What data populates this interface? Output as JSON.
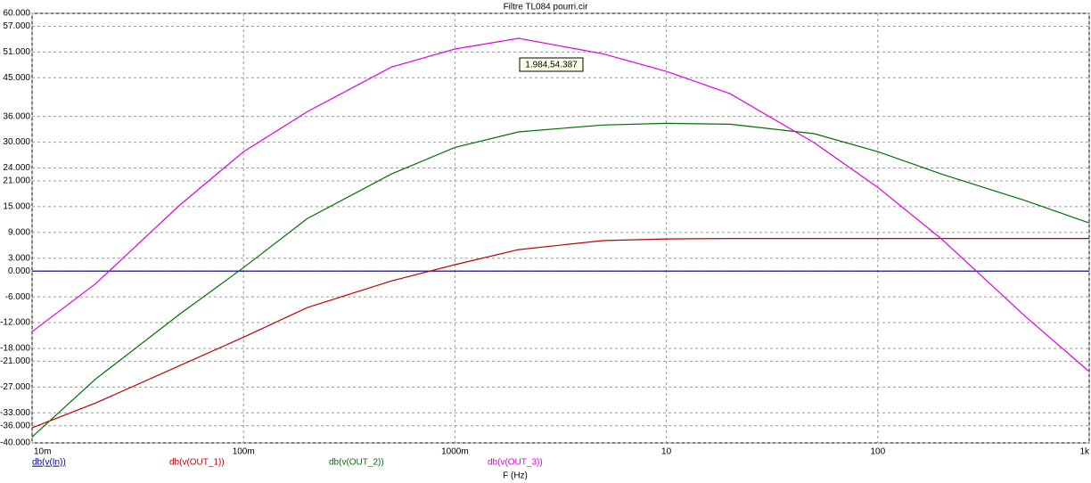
{
  "chart_data": {
    "type": "line",
    "title": "Filtre TL084 pourri.cir",
    "x_label": "F (Hz)",
    "log_x": true,
    "grid": true,
    "xlim": [
      0.01,
      1000
    ],
    "xticks": [
      {
        "value": 0.01,
        "label": "10m"
      },
      {
        "value": 0.1,
        "label": "100m"
      },
      {
        "value": 1,
        "label": "1000m"
      },
      10,
      100,
      {
        "value": 1000,
        "label": "1k"
      }
    ],
    "ylim": [
      -40,
      60
    ],
    "yticks": [
      {
        "value": 60,
        "label": "60.000"
      },
      {
        "value": 57,
        "label": "57.000"
      },
      {
        "value": 51,
        "label": "51.000"
      },
      {
        "value": 45,
        "label": "45.000"
      },
      {
        "value": 36,
        "label": "36.000"
      },
      {
        "value": 30,
        "label": "30.000"
      },
      {
        "value": 24,
        "label": "24.000"
      },
      {
        "value": 21,
        "label": "21.000"
      },
      {
        "value": 15,
        "label": "15.000"
      },
      {
        "value": 9,
        "label": "9.000"
      },
      {
        "value": 3,
        "label": "3.000"
      },
      {
        "value": 0,
        "label": "0.000"
      },
      {
        "value": -6,
        "label": "-6.000"
      },
      {
        "value": -12,
        "label": "-12.000"
      },
      {
        "value": -18,
        "label": "-18.000"
      },
      {
        "value": -21,
        "label": "-21.000"
      },
      {
        "value": -27,
        "label": "-27.000"
      },
      {
        "value": -33,
        "label": "-33.000"
      },
      {
        "value": -36,
        "label": "-36.000"
      },
      {
        "value": -40,
        "label": "-40.000"
      }
    ],
    "x": [
      0.01,
      0.02,
      0.05,
      0.1,
      0.2,
      0.5,
      1,
      2,
      5,
      10,
      20,
      50,
      100,
      200,
      500,
      1000
    ],
    "series": [
      {
        "name": "db(v(In))",
        "color": "#000080",
        "values": [
          0,
          0,
          0,
          0,
          0,
          0,
          0,
          0,
          0,
          0,
          0,
          0,
          0,
          0,
          0,
          0
        ]
      },
      {
        "name": "db(v(OUT_1))",
        "color": "#c00000",
        "values": [
          -36.5,
          -30.7,
          -22,
          -15.4,
          -8.5,
          -2.3,
          1.5,
          5,
          7.1,
          7.5,
          7.6,
          7.6,
          7.6,
          7.6,
          7.6,
          7.6
        ]
      },
      {
        "name": "db(v(OUT_2))",
        "color": "#007000",
        "values": [
          -38.6,
          -25.1,
          -10,
          0.8,
          12.2,
          22.6,
          28.8,
          32.4,
          34,
          34.4,
          34.2,
          32,
          27.8,
          22.6,
          16.4,
          11.2
        ]
      },
      {
        "name": "db(v(OUT_3))",
        "color": "#e000e0",
        "values": [
          -14.1,
          -2.9,
          15.4,
          27.8,
          37.1,
          47.5,
          51.7,
          54.2,
          50.6,
          46.5,
          41.3,
          29.9,
          19.5,
          7.5,
          -10.6,
          -23.4
        ]
      }
    ],
    "annotation": "1.984,54.387"
  }
}
